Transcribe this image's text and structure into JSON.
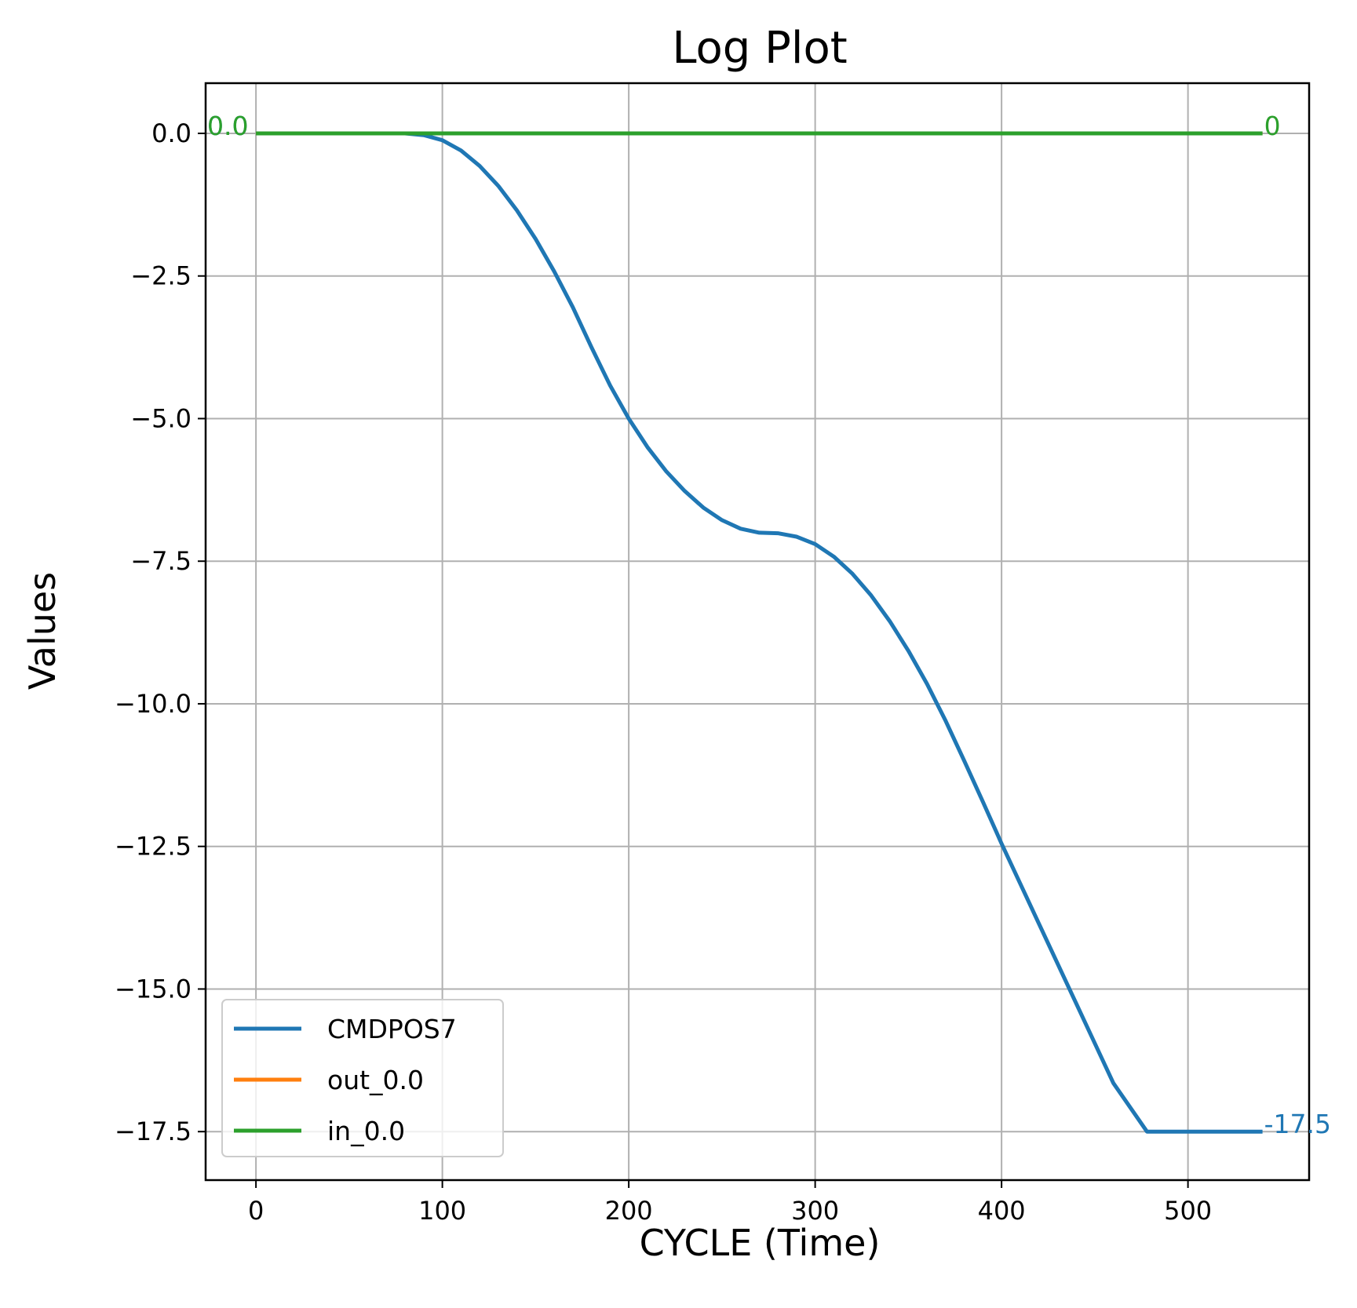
{
  "chart_data": {
    "type": "line",
    "title": "Log Plot",
    "xlabel": "CYCLE (Time)",
    "ylabel": "Values",
    "xlim": [
      -27,
      565
    ],
    "ylim": [
      -18.35,
      0.88
    ],
    "xticks": [
      0,
      100,
      200,
      300,
      400,
      500
    ],
    "xtick_labels": [
      "0",
      "100",
      "200",
      "300",
      "400",
      "500"
    ],
    "yticks": [
      0.0,
      -2.5,
      -5.0,
      -7.5,
      -10.0,
      -12.5,
      -15.0,
      -17.5
    ],
    "ytick_labels": [
      "0.0",
      "−2.5",
      "−5.0",
      "−7.5",
      "−10.0",
      "−12.5",
      "−15.0",
      "−17.5"
    ],
    "grid": true,
    "legend_position": "lower-left",
    "series": [
      {
        "name": "CMDPOS7",
        "color": "#1f77b4",
        "x": [
          0,
          80,
          90,
          100,
          110,
          120,
          130,
          140,
          150,
          160,
          170,
          180,
          190,
          200,
          210,
          220,
          230,
          240,
          250,
          260,
          270,
          280,
          290,
          300,
          310,
          320,
          330,
          340,
          350,
          360,
          370,
          380,
          390,
          400,
          420,
          440,
          460,
          478,
          540
        ],
        "y": [
          0,
          0,
          -0.03,
          -0.12,
          -0.3,
          -0.57,
          -0.92,
          -1.35,
          -1.85,
          -2.42,
          -3.05,
          -3.75,
          -4.42,
          -5.0,
          -5.5,
          -5.92,
          -6.27,
          -6.56,
          -6.78,
          -6.93,
          -7.0,
          -7.01,
          -7.07,
          -7.2,
          -7.42,
          -7.72,
          -8.1,
          -8.55,
          -9.07,
          -9.65,
          -10.3,
          -11.0,
          -11.72,
          -12.45,
          -13.85,
          -15.25,
          -16.65,
          -17.5,
          -17.5
        ]
      },
      {
        "name": "out_0.0",
        "color": "#ff7f0e",
        "x": [
          0,
          540
        ],
        "y": [
          0,
          0
        ]
      },
      {
        "name": "in_0.0",
        "color": "#2ca02c",
        "x": [
          0,
          540
        ],
        "y": [
          0,
          0
        ]
      }
    ],
    "annotations": [
      {
        "text": "0.0",
        "x": -27,
        "y": 0.0,
        "color": "#1f77b4"
      },
      {
        "text": "0.0",
        "x": -27,
        "y": 0.0,
        "color": "#2ca02c"
      },
      {
        "text": "0",
        "x": 540,
        "y": 0.0,
        "color": "#2ca02c"
      },
      {
        "text": "-17.5",
        "x": 540,
        "y": -17.5,
        "color": "#1f77b4"
      }
    ]
  }
}
